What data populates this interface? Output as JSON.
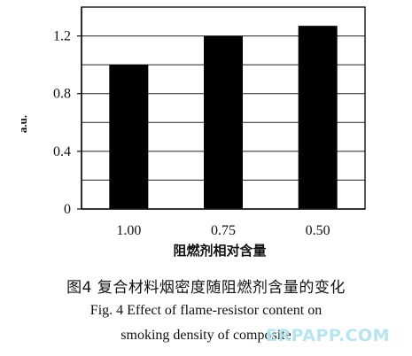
{
  "chart_data": {
    "type": "bar",
    "categories": [
      "1.00",
      "0.75",
      "0.50"
    ],
    "values": [
      1.0,
      1.2,
      1.27
    ],
    "ylabel": "a.u.",
    "xlabel": "阻燃剂相对含量",
    "ylim": [
      0,
      1.4
    ],
    "yticks": [
      "0",
      "0.4",
      "0.8",
      "1.2"
    ],
    "ytick_values": [
      0,
      0.4,
      0.8,
      1.2
    ],
    "gridlines": [
      0.2,
      0.4,
      0.6,
      0.8,
      1.0,
      1.2,
      1.4
    ],
    "grid": true,
    "bar_color": "#000000"
  },
  "caption": {
    "cn": "图4  复合材料烟密度随阻燃剂含量的变化",
    "en_line1": "Fig. 4   Effect of flame-resistor content on",
    "en_line2": "smoking density of composite"
  },
  "watermark": "ERPAPP.COM"
}
